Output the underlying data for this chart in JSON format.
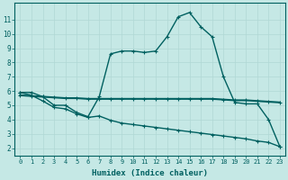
{
  "xlabel": "Humidex (Indice chaleur)",
  "ylabel": "",
  "bg_color": "#c5e8e5",
  "line_color": "#006060",
  "grid_color": "#b0d8d5",
  "xlim": [
    -0.5,
    23.5
  ],
  "ylim": [
    1.5,
    12.2
  ],
  "xticks": [
    0,
    1,
    2,
    3,
    4,
    5,
    6,
    7,
    8,
    9,
    10,
    11,
    12,
    13,
    14,
    15,
    16,
    17,
    18,
    19,
    20,
    21,
    22,
    23
  ],
  "yticks": [
    2,
    3,
    4,
    5,
    6,
    7,
    8,
    9,
    10,
    11
  ],
  "curve1_x": [
    0,
    1,
    2,
    3,
    4,
    5,
    6,
    7,
    8,
    9,
    10,
    11,
    12,
    13,
    14,
    15,
    16,
    17,
    18,
    19,
    20,
    21,
    22,
    23
  ],
  "curve1_y": [
    5.9,
    5.9,
    5.6,
    5.0,
    5.0,
    4.5,
    4.2,
    5.6,
    8.6,
    8.8,
    8.8,
    8.7,
    8.8,
    9.8,
    11.2,
    11.5,
    10.5,
    9.8,
    7.0,
    5.2,
    5.1,
    5.1,
    4.0,
    2.1
  ],
  "curve2_x": [
    0,
    1,
    2,
    3,
    4,
    5,
    6,
    7,
    8,
    9,
    10,
    11,
    12,
    13,
    14,
    15,
    16,
    17,
    18,
    19,
    20,
    21,
    22,
    23
  ],
  "curve2_y": [
    5.7,
    5.65,
    5.6,
    5.55,
    5.5,
    5.5,
    5.45,
    5.45,
    5.45,
    5.45,
    5.45,
    5.45,
    5.45,
    5.45,
    5.45,
    5.45,
    5.45,
    5.45,
    5.4,
    5.35,
    5.35,
    5.3,
    5.25,
    5.2
  ],
  "curve3_x": [
    0,
    1,
    2,
    3,
    4,
    5,
    6,
    7,
    8,
    9,
    10,
    11,
    12,
    13,
    14,
    15,
    16,
    17,
    18,
    19,
    20,
    21,
    22,
    23
  ],
  "curve3_y": [
    5.9,
    5.7,
    5.3,
    4.85,
    4.75,
    4.4,
    4.15,
    4.25,
    3.95,
    3.75,
    3.65,
    3.55,
    3.45,
    3.35,
    3.25,
    3.15,
    3.05,
    2.95,
    2.85,
    2.75,
    2.65,
    2.5,
    2.4,
    2.1
  ],
  "marker": "+",
  "markersize": 3.5,
  "markeredgewidth": 0.8,
  "linewidth1": 1.0,
  "linewidth2": 1.5,
  "linewidth3": 1.0,
  "xlabel_fontsize": 6.5,
  "tick_fontsize_x": 5.0,
  "tick_fontsize_y": 5.5
}
